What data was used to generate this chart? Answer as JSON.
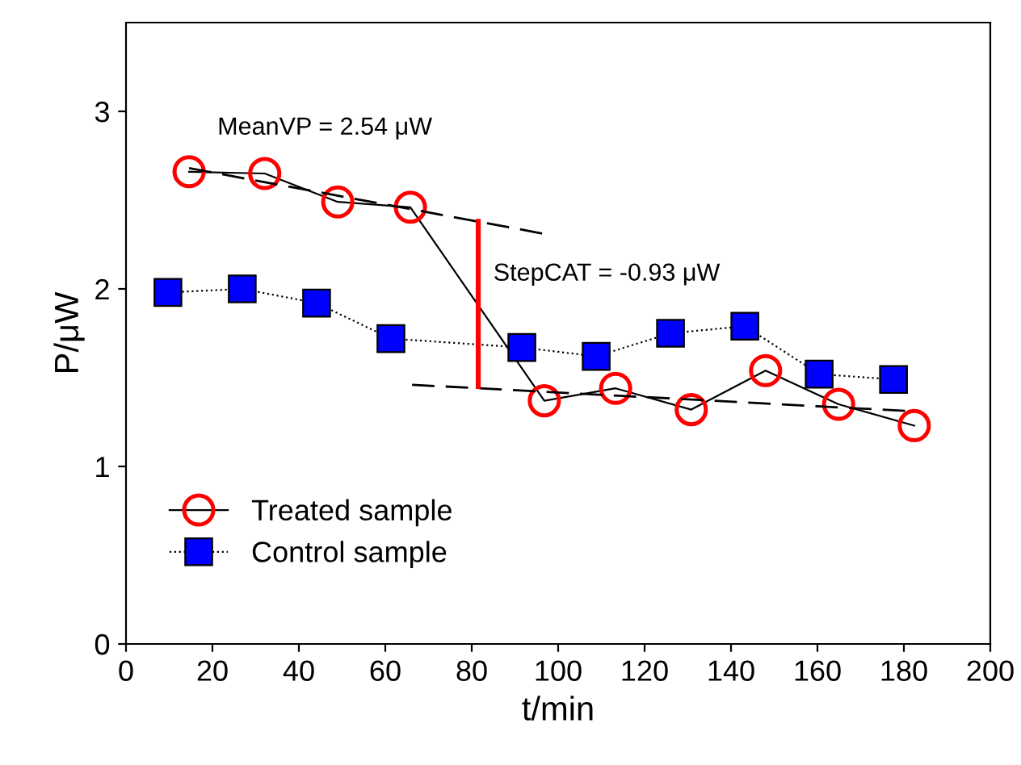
{
  "chart_data": {
    "type": "line",
    "xlabel": "t/min",
    "ylabel": "P/μW",
    "xlim": [
      0,
      200
    ],
    "ylim": [
      0,
      3.5
    ],
    "xticks": [
      0,
      20,
      40,
      60,
      80,
      100,
      120,
      140,
      160,
      180,
      200
    ],
    "yticks": [
      0,
      1,
      2,
      3
    ],
    "grid": false,
    "legend": "bottom left",
    "series": [
      {
        "name": "Treated sample",
        "color": "#ff0000",
        "marker": "circle",
        "line_style": "solid",
        "x": [
          14.6,
          32.1,
          49.0,
          65.8,
          96.8,
          113.3,
          130.8,
          148.0,
          164.9,
          182.4
        ],
        "values": [
          2.66,
          2.65,
          2.49,
          2.46,
          1.37,
          1.44,
          1.32,
          1.54,
          1.35,
          1.23
        ]
      },
      {
        "name": "Control sample",
        "color": "#0000ff",
        "marker": "square",
        "line_style": "dotted",
        "x": [
          9.7,
          26.9,
          44.1,
          61.3,
          91.6,
          108.8,
          126.0,
          143.2,
          160.4,
          177.6
        ],
        "values": [
          1.98,
          2.0,
          1.92,
          1.72,
          1.67,
          1.62,
          1.75,
          1.79,
          1.52,
          1.49
        ]
      },
      {
        "color": "#000000",
        "marker": "none",
        "line_style": "dashed",
        "x": [
          14.6,
          96.8
        ],
        "values": [
          2.68,
          2.31
        ]
      },
      {
        "color": "#000000",
        "marker": "none",
        "line_style": "dashed",
        "x": [
          66.2,
          182.4
        ],
        "values": [
          1.46,
          1.31
        ]
      },
      {
        "color": "#ff0000",
        "marker": "none",
        "line_style": "solid",
        "x": [
          81.5,
          81.5
        ],
        "values": [
          2.38,
          1.45
        ]
      }
    ],
    "annotations": [
      "MeanVP = 2.54 μW",
      "StepCAT = -0.93 μW"
    ]
  }
}
